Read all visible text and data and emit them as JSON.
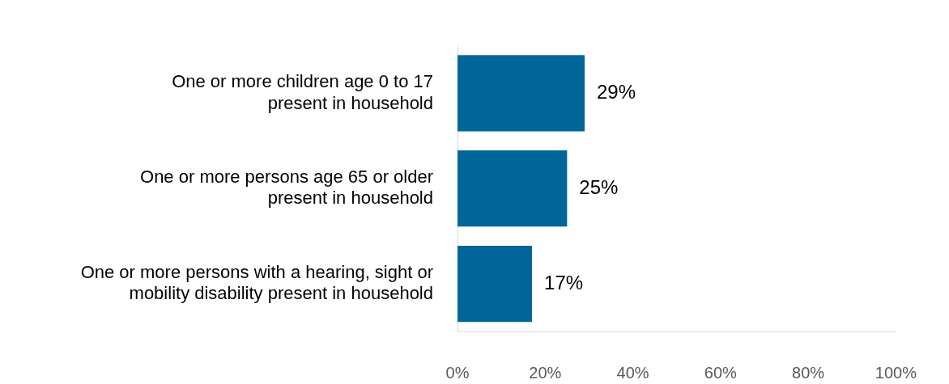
{
  "chart_data": {
    "type": "bar",
    "orientation": "horizontal",
    "categories": [
      "One or more children age 0 to 17\npresent in household",
      "One or more persons age 65 or older\npresent in household",
      "One or more persons with a hearing, sight or\nmobility disability present in household"
    ],
    "values": [
      29,
      25,
      17
    ],
    "color": "#00669a",
    "value_labels": [
      "29%",
      "25%",
      "17%"
    ],
    "xlim": [
      0,
      100
    ],
    "xticks": [
      {
        "value": 0,
        "label": "0%"
      },
      {
        "value": 20,
        "label": "20%"
      },
      {
        "value": 40,
        "label": "40%"
      },
      {
        "value": 60,
        "label": "60%"
      },
      {
        "value": 80,
        "label": "80%"
      },
      {
        "value": 100,
        "label": "100%"
      }
    ],
    "grid": false,
    "legend": false
  }
}
